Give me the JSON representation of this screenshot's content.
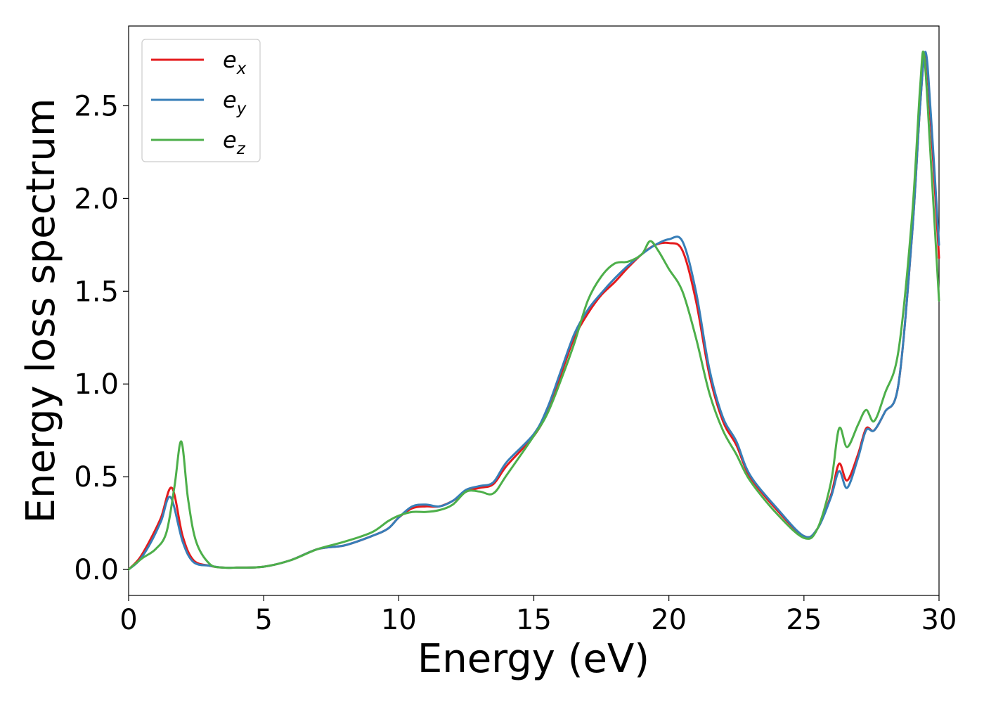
{
  "chart_data": {
    "type": "line",
    "xlabel": "Energy (eV)",
    "ylabel": "Energy loss spectrum",
    "xlim": [
      0,
      30
    ],
    "ylim": [
      -0.14,
      2.93
    ],
    "xticks": [
      0,
      5,
      10,
      15,
      20,
      25,
      30
    ],
    "xtick_labels": [
      "0",
      "5",
      "10",
      "15",
      "20",
      "25",
      "30"
    ],
    "yticks": [
      0.0,
      0.5,
      1.0,
      1.5,
      2.0,
      2.5
    ],
    "ytick_labels": [
      "0.0",
      "0.5",
      "1.0",
      "1.5",
      "2.0",
      "2.5"
    ],
    "grid": false,
    "legend_position": "top-left",
    "series": [
      {
        "name": "e_x",
        "label_base": "e",
        "label_sub": "x",
        "color": "#e41a1c",
        "points": [
          [
            0,
            0.0
          ],
          [
            0.4,
            0.06
          ],
          [
            0.8,
            0.16
          ],
          [
            1.2,
            0.28
          ],
          [
            1.6,
            0.44
          ],
          [
            2.0,
            0.18
          ],
          [
            2.4,
            0.05
          ],
          [
            3.0,
            0.02
          ],
          [
            3.5,
            0.01
          ],
          [
            4.0,
            0.01
          ],
          [
            5.0,
            0.015
          ],
          [
            6.0,
            0.05
          ],
          [
            7.0,
            0.11
          ],
          [
            8.0,
            0.13
          ],
          [
            9.0,
            0.18
          ],
          [
            9.6,
            0.22
          ],
          [
            10.0,
            0.28
          ],
          [
            10.5,
            0.33
          ],
          [
            11.0,
            0.34
          ],
          [
            11.5,
            0.34
          ],
          [
            12.0,
            0.37
          ],
          [
            12.5,
            0.42
          ],
          [
            13.0,
            0.44
          ],
          [
            13.5,
            0.46
          ],
          [
            14.0,
            0.56
          ],
          [
            15.0,
            0.72
          ],
          [
            15.5,
            0.85
          ],
          [
            16.0,
            1.05
          ],
          [
            16.5,
            1.25
          ],
          [
            17.0,
            1.38
          ],
          [
            17.5,
            1.48
          ],
          [
            18.0,
            1.55
          ],
          [
            18.5,
            1.63
          ],
          [
            19.0,
            1.7
          ],
          [
            19.5,
            1.75
          ],
          [
            20.0,
            1.76
          ],
          [
            20.5,
            1.72
          ],
          [
            21.0,
            1.45
          ],
          [
            21.5,
            1.05
          ],
          [
            22.0,
            0.8
          ],
          [
            22.5,
            0.67
          ],
          [
            23.0,
            0.5
          ],
          [
            24.0,
            0.32
          ],
          [
            25.0,
            0.18
          ],
          [
            25.5,
            0.22
          ],
          [
            26.0,
            0.4
          ],
          [
            26.3,
            0.57
          ],
          [
            26.6,
            0.48
          ],
          [
            27.0,
            0.62
          ],
          [
            27.3,
            0.76
          ],
          [
            27.6,
            0.75
          ],
          [
            28.0,
            0.85
          ],
          [
            28.5,
            1.0
          ],
          [
            29.0,
            1.8
          ],
          [
            29.3,
            2.5
          ],
          [
            29.5,
            2.78
          ],
          [
            29.7,
            2.4
          ],
          [
            30.0,
            1.68
          ]
        ]
      },
      {
        "name": "e_y",
        "label_base": "e",
        "label_sub": "y",
        "color": "#377eb8",
        "points": [
          [
            0,
            0.0
          ],
          [
            0.4,
            0.05
          ],
          [
            0.8,
            0.14
          ],
          [
            1.2,
            0.26
          ],
          [
            1.55,
            0.39
          ],
          [
            2.0,
            0.15
          ],
          [
            2.4,
            0.04
          ],
          [
            3.0,
            0.02
          ],
          [
            3.5,
            0.01
          ],
          [
            4.0,
            0.01
          ],
          [
            5.0,
            0.015
          ],
          [
            6.0,
            0.05
          ],
          [
            7.0,
            0.11
          ],
          [
            8.0,
            0.13
          ],
          [
            9.0,
            0.18
          ],
          [
            9.6,
            0.22
          ],
          [
            10.0,
            0.28
          ],
          [
            10.5,
            0.34
          ],
          [
            11.0,
            0.35
          ],
          [
            11.5,
            0.34
          ],
          [
            12.0,
            0.37
          ],
          [
            12.5,
            0.43
          ],
          [
            13.0,
            0.45
          ],
          [
            13.5,
            0.47
          ],
          [
            14.0,
            0.58
          ],
          [
            15.0,
            0.73
          ],
          [
            15.5,
            0.87
          ],
          [
            16.0,
            1.07
          ],
          [
            16.5,
            1.27
          ],
          [
            17.0,
            1.4
          ],
          [
            17.5,
            1.49
          ],
          [
            18.0,
            1.57
          ],
          [
            18.5,
            1.64
          ],
          [
            19.0,
            1.7
          ],
          [
            19.5,
            1.75
          ],
          [
            20.0,
            1.78
          ],
          [
            20.5,
            1.77
          ],
          [
            21.0,
            1.5
          ],
          [
            21.5,
            1.08
          ],
          [
            22.0,
            0.82
          ],
          [
            22.5,
            0.69
          ],
          [
            23.0,
            0.51
          ],
          [
            24.0,
            0.33
          ],
          [
            25.0,
            0.18
          ],
          [
            25.5,
            0.22
          ],
          [
            26.0,
            0.39
          ],
          [
            26.3,
            0.53
          ],
          [
            26.6,
            0.44
          ],
          [
            27.0,
            0.6
          ],
          [
            27.3,
            0.75
          ],
          [
            27.6,
            0.75
          ],
          [
            28.0,
            0.85
          ],
          [
            28.5,
            1.0
          ],
          [
            29.0,
            1.8
          ],
          [
            29.3,
            2.5
          ],
          [
            29.5,
            2.79
          ],
          [
            29.7,
            2.45
          ],
          [
            30.0,
            1.75
          ]
        ]
      },
      {
        "name": "e_z",
        "label_base": "e",
        "label_sub": "z",
        "color": "#4daf4a",
        "points": [
          [
            0,
            0.0
          ],
          [
            0.5,
            0.06
          ],
          [
            1.0,
            0.11
          ],
          [
            1.4,
            0.2
          ],
          [
            1.7,
            0.45
          ],
          [
            1.95,
            0.69
          ],
          [
            2.2,
            0.38
          ],
          [
            2.5,
            0.15
          ],
          [
            3.0,
            0.03
          ],
          [
            3.5,
            0.01
          ],
          [
            4.0,
            0.01
          ],
          [
            5.0,
            0.015
          ],
          [
            6.0,
            0.05
          ],
          [
            7.0,
            0.11
          ],
          [
            8.0,
            0.15
          ],
          [
            9.0,
            0.2
          ],
          [
            9.6,
            0.26
          ],
          [
            10.0,
            0.29
          ],
          [
            10.5,
            0.31
          ],
          [
            11.0,
            0.31
          ],
          [
            11.5,
            0.32
          ],
          [
            12.0,
            0.35
          ],
          [
            12.5,
            0.42
          ],
          [
            13.0,
            0.42
          ],
          [
            13.5,
            0.41
          ],
          [
            14.0,
            0.51
          ],
          [
            15.0,
            0.72
          ],
          [
            15.5,
            0.84
          ],
          [
            16.0,
            1.02
          ],
          [
            16.5,
            1.22
          ],
          [
            17.0,
            1.45
          ],
          [
            17.5,
            1.58
          ],
          [
            18.0,
            1.65
          ],
          [
            18.5,
            1.66
          ],
          [
            19.0,
            1.7
          ],
          [
            19.3,
            1.77
          ],
          [
            19.6,
            1.72
          ],
          [
            20.0,
            1.62
          ],
          [
            20.5,
            1.5
          ],
          [
            21.0,
            1.25
          ],
          [
            21.5,
            0.95
          ],
          [
            22.0,
            0.75
          ],
          [
            22.5,
            0.62
          ],
          [
            23.0,
            0.48
          ],
          [
            24.0,
            0.3
          ],
          [
            25.0,
            0.17
          ],
          [
            25.5,
            0.22
          ],
          [
            26.0,
            0.47
          ],
          [
            26.3,
            0.76
          ],
          [
            26.6,
            0.66
          ],
          [
            27.0,
            0.78
          ],
          [
            27.3,
            0.86
          ],
          [
            27.6,
            0.8
          ],
          [
            28.0,
            0.95
          ],
          [
            28.5,
            1.18
          ],
          [
            29.0,
            1.9
          ],
          [
            29.3,
            2.6
          ],
          [
            29.45,
            2.77
          ],
          [
            29.7,
            2.2
          ],
          [
            30.0,
            1.45
          ]
        ]
      }
    ]
  }
}
